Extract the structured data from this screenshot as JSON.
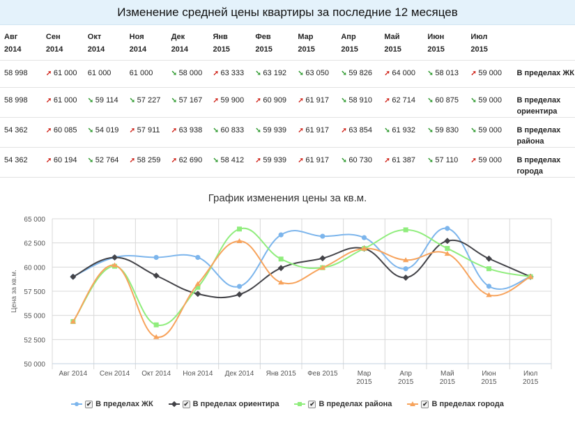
{
  "header": {
    "title": "Изменение средней цены квартиры за последние 12 месяцев"
  },
  "table": {
    "columns": [
      [
        "Авг",
        "2014"
      ],
      [
        "Сен",
        "2014"
      ],
      [
        "Окт",
        "2014"
      ],
      [
        "Ноя",
        "2014"
      ],
      [
        "Дек",
        "2014"
      ],
      [
        "Янв",
        "2015"
      ],
      [
        "Фев",
        "2015"
      ],
      [
        "Мар",
        "2015"
      ],
      [
        "Апр",
        "2015"
      ],
      [
        "Май",
        "2015"
      ],
      [
        "Июн",
        "2015"
      ],
      [
        "Июл",
        "2015"
      ]
    ],
    "rows": [
      {
        "region": "В пределах ЖК",
        "cells": [
          {
            "v": "58 998",
            "d": ""
          },
          {
            "v": "61 000",
            "d": "up"
          },
          {
            "v": "61 000",
            "d": ""
          },
          {
            "v": "61 000",
            "d": ""
          },
          {
            "v": "58 000",
            "d": "down"
          },
          {
            "v": "63 333",
            "d": "up"
          },
          {
            "v": "63 192",
            "d": "down"
          },
          {
            "v": "63 050",
            "d": "down"
          },
          {
            "v": "59 826",
            "d": "down"
          },
          {
            "v": "64 000",
            "d": "up"
          },
          {
            "v": "58 013",
            "d": "down"
          },
          {
            "v": "59 000",
            "d": "up"
          }
        ]
      },
      {
        "region": "В пределах ориентира",
        "cells": [
          {
            "v": "58 998",
            "d": ""
          },
          {
            "v": "61 000",
            "d": "up"
          },
          {
            "v": "59 114",
            "d": "down"
          },
          {
            "v": "57 227",
            "d": "down"
          },
          {
            "v": "57 167",
            "d": "down"
          },
          {
            "v": "59 900",
            "d": "up"
          },
          {
            "v": "60 909",
            "d": "up"
          },
          {
            "v": "61 917",
            "d": "up"
          },
          {
            "v": "58 910",
            "d": "down"
          },
          {
            "v": "62 714",
            "d": "up"
          },
          {
            "v": "60 875",
            "d": "down"
          },
          {
            "v": "59 000",
            "d": "down"
          }
        ]
      },
      {
        "region": "В пределах района",
        "cells": [
          {
            "v": "54 362",
            "d": ""
          },
          {
            "v": "60 085",
            "d": "up"
          },
          {
            "v": "54 019",
            "d": "down"
          },
          {
            "v": "57 911",
            "d": "up"
          },
          {
            "v": "63 938",
            "d": "up"
          },
          {
            "v": "60 833",
            "d": "down"
          },
          {
            "v": "59 939",
            "d": "down"
          },
          {
            "v": "61 917",
            "d": "up"
          },
          {
            "v": "63 854",
            "d": "up"
          },
          {
            "v": "61 932",
            "d": "down"
          },
          {
            "v": "59 830",
            "d": "down"
          },
          {
            "v": "59 000",
            "d": "down"
          }
        ]
      },
      {
        "region": "В пределах города",
        "cells": [
          {
            "v": "54 362",
            "d": ""
          },
          {
            "v": "60 194",
            "d": "up"
          },
          {
            "v": "52 764",
            "d": "down"
          },
          {
            "v": "58 259",
            "d": "up"
          },
          {
            "v": "62 690",
            "d": "up"
          },
          {
            "v": "58 412",
            "d": "down"
          },
          {
            "v": "59 939",
            "d": "up"
          },
          {
            "v": "61 917",
            "d": "up"
          },
          {
            "v": "60 730",
            "d": "down"
          },
          {
            "v": "61 387",
            "d": "up"
          },
          {
            "v": "57 110",
            "d": "down"
          },
          {
            "v": "59 000",
            "d": "up"
          }
        ]
      }
    ]
  },
  "chart_data": {
    "type": "line",
    "title": "График изменения цены за кв.м.",
    "ylabel": "Цена за кв.м.",
    "xlabel": "",
    "categories": [
      [
        "Авг 2014"
      ],
      [
        "Сен 2014"
      ],
      [
        "Окт 2014"
      ],
      [
        "Ноя 2014"
      ],
      [
        "Дек 2014"
      ],
      [
        "Янв 2015"
      ],
      [
        "Фев 2015"
      ],
      [
        "Мар",
        "2015"
      ],
      [
        "Апр",
        "2015"
      ],
      [
        "Май",
        "2015"
      ],
      [
        "Июн",
        "2015"
      ],
      [
        "Июл",
        "2015"
      ]
    ],
    "yticks": [
      "50 000",
      "52 500",
      "55 000",
      "57 500",
      "60 000",
      "62 500",
      "65 000"
    ],
    "ylim": [
      50000,
      65000
    ],
    "grid": true,
    "legend_position": "bottom",
    "series": [
      {
        "name": "В пределах ЖК",
        "color": "#7cb5ec",
        "marker": "circle",
        "values": [
          58998,
          61000,
          61000,
          61000,
          58000,
          63333,
          63192,
          63050,
          59826,
          64000,
          58013,
          59000
        ]
      },
      {
        "name": "В пределах ориентира",
        "color": "#434348",
        "marker": "diamond",
        "values": [
          58998,
          61000,
          59114,
          57227,
          57167,
          59900,
          60909,
          61917,
          58910,
          62714,
          60875,
          59000
        ]
      },
      {
        "name": "В пределах района",
        "color": "#90ed7d",
        "marker": "square",
        "values": [
          54362,
          60085,
          54019,
          57911,
          63938,
          60833,
          59939,
          61917,
          63854,
          61932,
          59830,
          59000
        ]
      },
      {
        "name": "В пределах города",
        "color": "#f7a35c",
        "marker": "triangle",
        "values": [
          54362,
          60194,
          52764,
          58259,
          62690,
          58412,
          59939,
          61917,
          60730,
          61387,
          57110,
          59000
        ]
      }
    ]
  },
  "legend": {
    "checkmark": "✔"
  },
  "arrows": {
    "up": "➚",
    "down": "➘"
  }
}
